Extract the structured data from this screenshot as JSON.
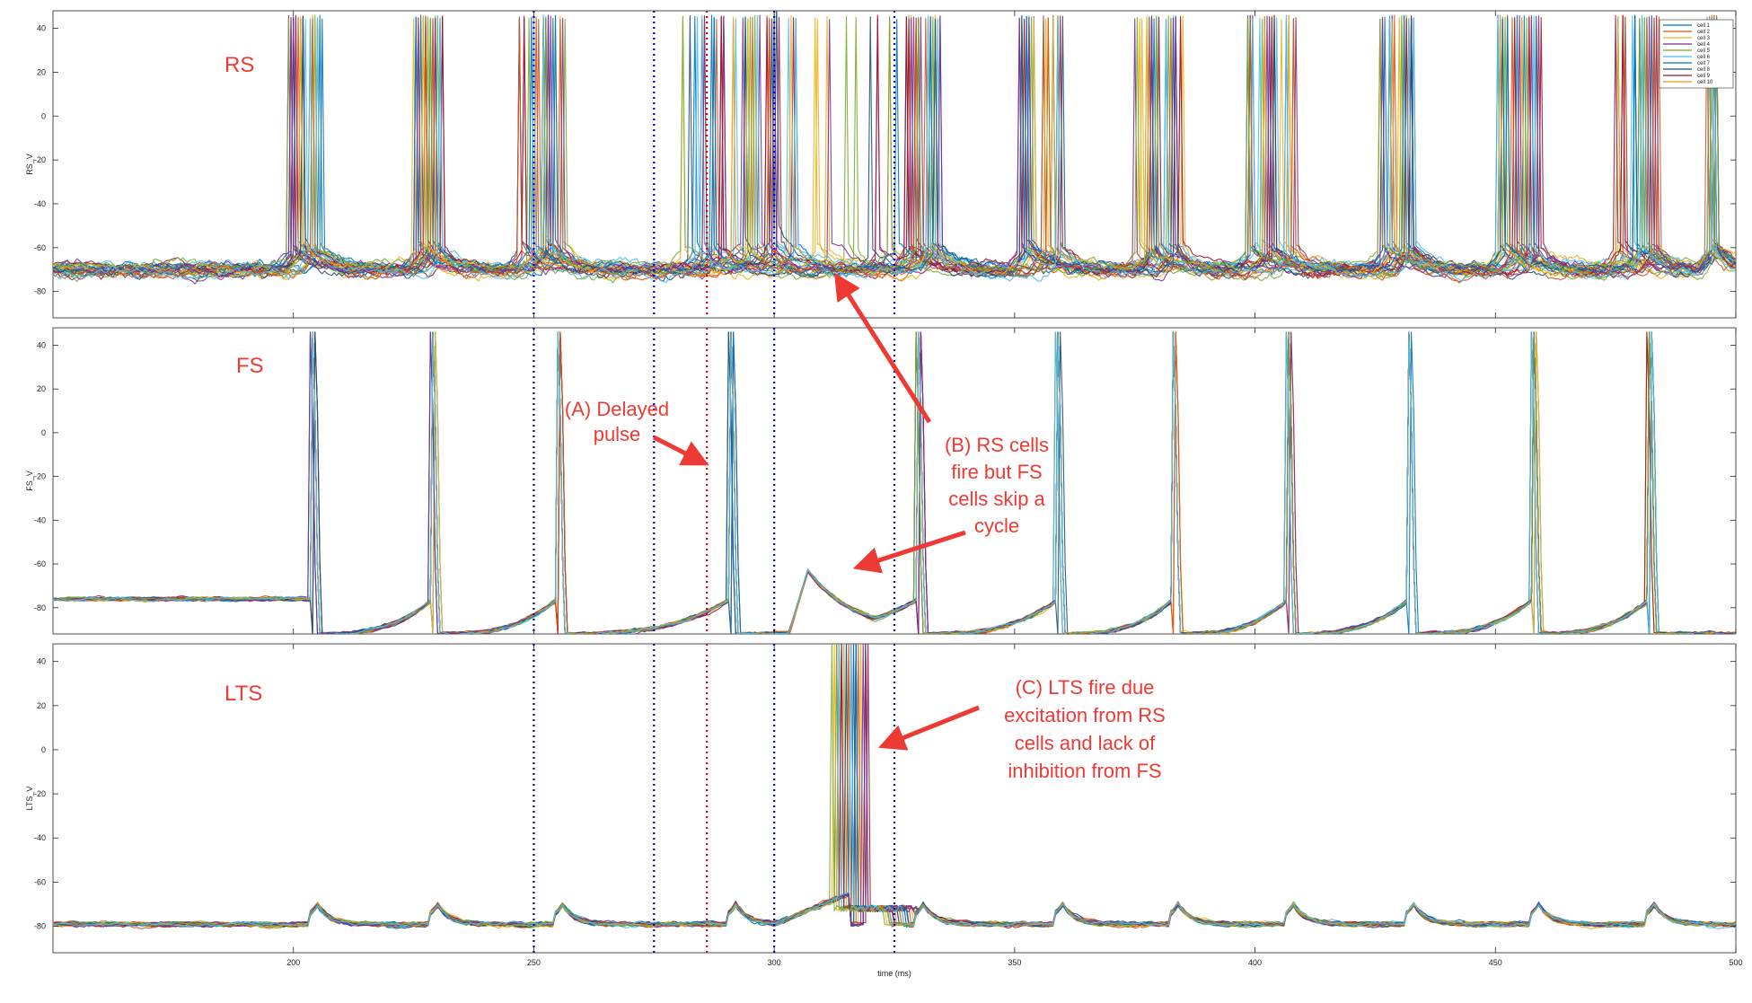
{
  "chart_data": {
    "type": "line",
    "x_range": [
      150,
      500
    ],
    "xlabel": "time (ms)",
    "x_ticks": [
      200,
      250,
      300,
      350,
      400,
      450,
      500
    ],
    "y_ticks": [
      40,
      20,
      0,
      -20,
      -40,
      -60,
      -80
    ],
    "ylim": [
      -92,
      48
    ],
    "grid": false,
    "legend": {
      "placement": "top-right",
      "entries": [
        {
          "name": "cell 1",
          "color": "#0072bd"
        },
        {
          "name": "cell 2",
          "color": "#d95319"
        },
        {
          "name": "cell 3",
          "color": "#edb120"
        },
        {
          "name": "cell 4",
          "color": "#7e2f8e"
        },
        {
          "name": "cell 5",
          "color": "#77ac30"
        },
        {
          "name": "cell 6",
          "color": "#4dbeee"
        },
        {
          "name": "cell 7",
          "color": "#0072bd"
        },
        {
          "name": "cell 8",
          "color": "#1f4e79"
        },
        {
          "name": "cell 9",
          "color": "#a2142f"
        },
        {
          "name": "cell 10",
          "color": "#d99a1a"
        }
      ]
    },
    "colors": [
      "#0072bd",
      "#d95319",
      "#edb120",
      "#7e2f8e",
      "#77ac30",
      "#4dbeee",
      "#a2142f",
      "#1f4e79"
    ],
    "vlines": [
      {
        "x": 250,
        "color": "#0000cc",
        "style": "dotted"
      },
      {
        "x": 275,
        "color": "#0000cc",
        "style": "dotted"
      },
      {
        "x": 286,
        "color": "#dd0000",
        "style": "dotted"
      },
      {
        "x": 300,
        "color": "#0000cc",
        "style": "dotted"
      },
      {
        "x": 325,
        "color": "#0000cc",
        "style": "dotted"
      }
    ],
    "panels": [
      {
        "title": "RS",
        "ylabel": "RS_V",
        "baseline": -70,
        "noise": 3.2,
        "spike_peak": 46,
        "bursts": [
          {
            "t": 203,
            "spread": 4
          },
          {
            "t": 228,
            "spread": 3
          },
          {
            "t": 252,
            "spread": 5
          },
          {
            "t": 291,
            "spread": 10
          },
          {
            "t": 310,
            "spread": 18
          },
          {
            "t": 331,
            "spread": 4
          },
          {
            "t": 356,
            "spread": 5
          },
          {
            "t": 380,
            "spread": 5
          },
          {
            "t": 404,
            "spread": 6
          },
          {
            "t": 429,
            "spread": 4
          },
          {
            "t": 455,
            "spread": 5
          },
          {
            "t": 480,
            "spread": 5
          },
          {
            "t": 495,
            "spread": 1
          }
        ]
      },
      {
        "title": "FS",
        "ylabel": "FS_V",
        "baseline_pre": -76,
        "baseline_post": -92,
        "noise": 1.0,
        "spike_peak": 46,
        "spikes": [
          204,
          229,
          255,
          291,
          330,
          359,
          383,
          407,
          432,
          458,
          482
        ],
        "subthreshold_bump": {
          "t": 307,
          "peak": -63,
          "end": 325
        }
      },
      {
        "title": "LTS",
        "ylabel": "LTS_V",
        "baseline": -79,
        "noise": 1.2,
        "spike_peak": 48,
        "bump_times": [
          204,
          229,
          255,
          291,
          330,
          359,
          383,
          407,
          432,
          458,
          482
        ],
        "bump_height": 9,
        "burst": {
          "t": 316,
          "spread": 4
        }
      }
    ],
    "annotations": [
      {
        "panel": 1,
        "lines": [
          "(A) Delayed",
          "pulse"
        ]
      },
      {
        "panel": 1,
        "lines": [
          "(B) RS cells",
          "fire but FS",
          "cells skip a",
          "cycle"
        ]
      },
      {
        "panel": 2,
        "lines": [
          "(C) LTS fire due",
          "excitation from RS",
          "cells and lack of",
          "inhibition from FS"
        ]
      }
    ]
  }
}
